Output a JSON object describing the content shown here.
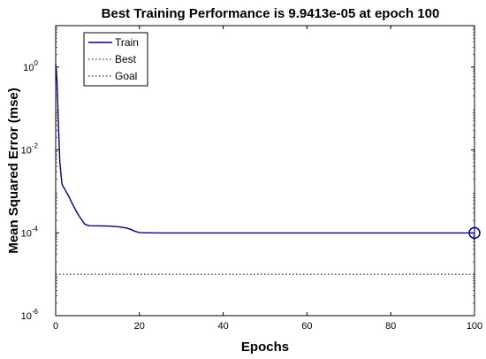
{
  "chart_data": {
    "type": "line",
    "title": "Best Training Performance is 9.9413e-05 at epoch 100",
    "xlabel": "Epochs",
    "ylabel": "Mean Squared Error  (mse)",
    "xlim": [
      0,
      100
    ],
    "ylim": [
      1e-06,
      10
    ],
    "yscale": "log",
    "xticks": [
      0,
      20,
      40,
      60,
      80,
      100
    ],
    "yticks": [
      {
        "base": "10",
        "exp": "0",
        "value": 1
      },
      {
        "base": "10",
        "exp": "-2",
        "value": 0.01
      },
      {
        "base": "10",
        "exp": "-4",
        "value": 0.0001
      },
      {
        "base": "10",
        "exp": "-6",
        "value": 1e-06
      }
    ],
    "grid": false,
    "legend": {
      "placement": "top-left",
      "entries": [
        "Train",
        "Best",
        "Goal"
      ]
    },
    "series": [
      {
        "name": "Train",
        "color": "#00008b",
        "style": "solid",
        "x": [
          0,
          0.3,
          0.7,
          1,
          1.5,
          2,
          3,
          4,
          5,
          6,
          7,
          8,
          10,
          12,
          14,
          15,
          16,
          17,
          18,
          19,
          20,
          22,
          25,
          30,
          40,
          50,
          60,
          70,
          80,
          90,
          100
        ],
        "y": [
          1.2,
          0.5,
          0.03,
          0.005,
          0.0015,
          0.0012,
          0.0008,
          0.0005,
          0.00032,
          0.00022,
          0.00016,
          0.000148,
          0.000147,
          0.000146,
          0.000142,
          0.00014,
          0.000135,
          0.00013,
          0.00012,
          0.000108,
          0.000101,
          0.0001,
          9.95e-05,
          9.95e-05,
          9.94e-05,
          9.94e-05,
          9.95e-05,
          9.94e-05,
          9.94e-05,
          9.94e-05,
          9.9413e-05
        ]
      },
      {
        "name": "Best",
        "color": "#00008b",
        "style": "dotted",
        "marker": "circle",
        "x": [
          100
        ],
        "y": [
          9.9413e-05
        ]
      },
      {
        "name": "Goal",
        "color": "#000000",
        "style": "dotted",
        "y_constant": 1e-05
      }
    ]
  },
  "colors": {
    "train": "#00008b",
    "best": "#00008b",
    "goal": "#000000",
    "axes": "#000000"
  }
}
